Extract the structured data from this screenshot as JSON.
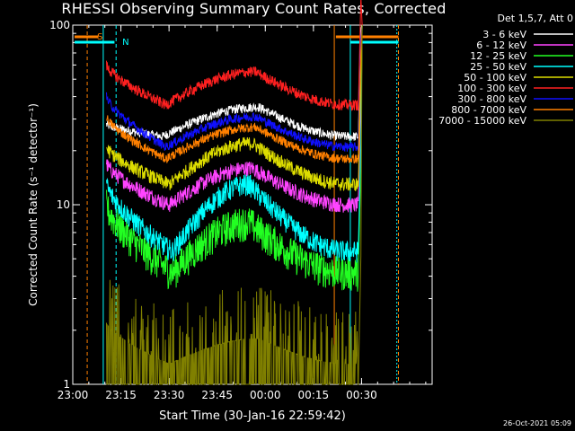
{
  "chart_data": {
    "type": "line",
    "title": "RHESSI Observing Summary Count Rates, Corrected",
    "xlabel": "Start Time (30-Jan-16 22:59:42)",
    "ylabel": "Corrected Count Rate (s⁻¹ detector⁻¹)",
    "ylog": true,
    "ylim": [
      1,
      100
    ],
    "xlim_min": [
      0,
      112
    ],
    "x_ticks": [
      {
        "t": 0,
        "label": "23:00"
      },
      {
        "t": 15,
        "label": "23:15"
      },
      {
        "t": 30,
        "label": "23:30"
      },
      {
        "t": 45,
        "label": "23:45"
      },
      {
        "t": 60,
        "label": "00:00"
      },
      {
        "t": 75,
        "label": "00:15"
      },
      {
        "t": 90,
        "label": "00:30"
      }
    ],
    "y_ticks": [
      {
        "v": 1,
        "label": "1"
      },
      {
        "v": 10,
        "label": "10"
      },
      {
        "v": 100,
        "label": "100"
      }
    ],
    "legend": {
      "header": "Det 1,5,7, Att 0",
      "placement": "top-right"
    },
    "series": [
      {
        "name": "3 - 6 keV",
        "color": "#ffffff",
        "start": 28,
        "min": 24,
        "peak": 35,
        "noise": 0.06,
        "minT": 28,
        "peakT": 58
      },
      {
        "name": "6 - 12 keV",
        "color": "#ff44ff",
        "start": 17,
        "min": 10,
        "peak": 16,
        "noise": 0.1,
        "minT": 30,
        "peakT": 56
      },
      {
        "name": "12 - 25 keV",
        "color": "#22ff22",
        "start": 10,
        "min": 4.2,
        "peak": 8,
        "noise": 0.22,
        "minT": 31,
        "peakT": 55
      },
      {
        "name": "25 - 50 keV",
        "color": "#00ffff",
        "start": 13,
        "min": 5.5,
        "peak": 13,
        "noise": 0.14,
        "minT": 31,
        "peakT": 55
      },
      {
        "name": "50 - 100 keV",
        "color": "#dddd00",
        "start": 21,
        "min": 13,
        "peak": 22,
        "noise": 0.09,
        "minT": 30,
        "peakT": 56
      },
      {
        "name": "100 - 300 keV",
        "color": "#ff2020",
        "start": 60,
        "min": 36,
        "peak": 55,
        "noise": 0.07,
        "minT": 29,
        "peakT": 57
      },
      {
        "name": "300 - 800 keV",
        "color": "#1010ff",
        "start": 40,
        "min": 21,
        "peak": 31,
        "noise": 0.06,
        "minT": 29,
        "peakT": 57
      },
      {
        "name": "800 - 7000 keV",
        "color": "#ff8000",
        "start": 31,
        "min": 18,
        "peak": 27,
        "noise": 0.06,
        "minT": 29,
        "peakT": 57
      },
      {
        "name": "7000 - 15000 keV",
        "color": "#808000",
        "start": 2.2,
        "min": 1.3,
        "peak": 1.8,
        "noise": 0.5,
        "minT": 30,
        "peakT": 58
      }
    ],
    "data_window": [
      10.5,
      89
    ],
    "annotations": [
      {
        "label": "S",
        "color": "#ff8000"
      },
      {
        "label": "N",
        "color": "#00ffff"
      }
    ]
  },
  "footer": {
    "timestamp": "26-Oct-2021 05:09"
  }
}
